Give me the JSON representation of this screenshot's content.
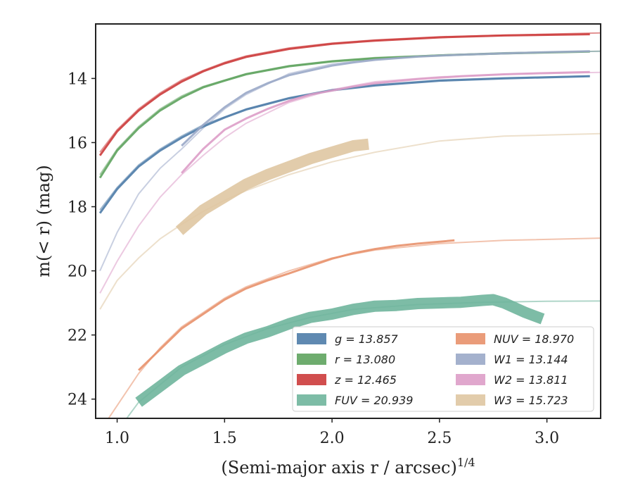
{
  "chart_data": {
    "type": "line",
    "xlabel": "(Semi-major axis r / arcsec)",
    "xlabel_sup": "1/4",
    "ylabel": "m(< r) (mag)",
    "xlim": [
      0.9,
      3.25
    ],
    "ylim": [
      24.6,
      12.3
    ],
    "y_inverted": true,
    "x_ticks": [
      1.0,
      1.5,
      2.0,
      2.5,
      3.0
    ],
    "x_tick_labels": [
      "1.0",
      "1.5",
      "2.0",
      "2.5",
      "3.0"
    ],
    "y_ticks": [
      14,
      16,
      18,
      20,
      22,
      24
    ],
    "y_tick_labels": [
      "14",
      "16",
      "18",
      "20",
      "22",
      "24"
    ],
    "grid": false,
    "legend_position": "lower-right",
    "series": [
      {
        "label": "g = 13.857",
        "color": "#4e7ca8",
        "band": false,
        "model": {
          "x": [
            0.92,
            1.0,
            1.1,
            1.2,
            1.3,
            1.4,
            1.5,
            1.6,
            1.8,
            2.0,
            2.2,
            2.5,
            2.8,
            3.2
          ],
          "y": [
            18.1,
            17.4,
            16.7,
            16.2,
            15.8,
            15.45,
            15.2,
            14.95,
            14.6,
            14.35,
            14.2,
            14.05,
            13.98,
            13.92
          ]
        },
        "data": {
          "x": [
            0.92,
            1.0,
            1.1,
            1.2,
            1.3,
            1.4,
            1.5,
            1.6,
            1.8,
            2.0,
            2.2,
            2.5,
            2.8,
            3.2
          ],
          "y": [
            18.2,
            17.45,
            16.75,
            16.25,
            15.85,
            15.5,
            15.22,
            14.97,
            14.62,
            14.37,
            14.22,
            14.07,
            14.0,
            13.93
          ]
        }
      },
      {
        "label": "r = 13.080",
        "color": "#5ea35e",
        "band": false,
        "model": {
          "x": [
            0.92,
            1.0,
            1.1,
            1.2,
            1.3,
            1.4,
            1.5,
            1.6,
            1.8,
            2.0,
            2.2,
            2.5,
            2.8,
            3.25
          ],
          "y": [
            17.0,
            16.2,
            15.5,
            14.95,
            14.55,
            14.25,
            14.05,
            13.85,
            13.6,
            13.45,
            13.35,
            13.27,
            13.2,
            13.15
          ]
        },
        "data": {
          "x": [
            0.92,
            1.0,
            1.1,
            1.2,
            1.3,
            1.4,
            1.5,
            1.6,
            1.8,
            2.0,
            2.2,
            2.5,
            2.8,
            3.2
          ],
          "y": [
            17.1,
            16.25,
            15.55,
            15.0,
            14.6,
            14.28,
            14.07,
            13.87,
            13.62,
            13.47,
            13.37,
            13.28,
            13.22,
            13.16
          ]
        }
      },
      {
        "label": "z = 12.465",
        "color": "#cc3b3b",
        "band": false,
        "model": {
          "x": [
            0.92,
            1.0,
            1.1,
            1.2,
            1.3,
            1.4,
            1.5,
            1.6,
            1.8,
            2.0,
            2.2,
            2.5,
            2.8,
            3.25
          ],
          "y": [
            16.3,
            15.6,
            14.95,
            14.45,
            14.05,
            13.75,
            13.5,
            13.3,
            13.05,
            12.9,
            12.8,
            12.7,
            12.65,
            12.58
          ]
        },
        "data": {
          "x": [
            0.92,
            1.0,
            1.1,
            1.2,
            1.3,
            1.4,
            1.5,
            1.6,
            1.8,
            2.0,
            2.2,
            2.5,
            2.8,
            3.2
          ],
          "y": [
            16.4,
            15.65,
            15.0,
            14.5,
            14.1,
            13.78,
            13.53,
            13.33,
            13.08,
            12.92,
            12.82,
            12.72,
            12.66,
            12.62
          ]
        }
      },
      {
        "label": "FUV = 20.939",
        "color": "#6fb59c",
        "band": true,
        "model": {
          "x": [
            0.92,
            1.0,
            1.1,
            1.3,
            1.5,
            1.7,
            1.9,
            2.1,
            2.4,
            2.7,
            3.0,
            3.25
          ],
          "y": [
            26.0,
            25.0,
            24.1,
            23.0,
            22.3,
            21.8,
            21.45,
            21.2,
            21.05,
            20.98,
            20.95,
            20.94
          ]
        },
        "data": {
          "x": [
            1.1,
            1.2,
            1.3,
            1.4,
            1.5,
            1.6,
            1.7,
            1.8,
            1.9,
            2.0,
            2.1,
            2.2,
            2.3,
            2.4,
            2.5,
            2.6,
            2.7,
            2.75,
            2.8,
            2.9,
            2.98
          ],
          "y": [
            24.1,
            23.6,
            23.1,
            22.75,
            22.4,
            22.1,
            21.9,
            21.65,
            21.45,
            21.35,
            21.2,
            21.1,
            21.08,
            21.02,
            21.0,
            20.98,
            20.92,
            20.9,
            21.0,
            21.3,
            21.5
          ]
        }
      },
      {
        "label": "NUV = 18.970",
        "color": "#e8916c",
        "band": false,
        "model": {
          "x": [
            0.92,
            1.0,
            1.1,
            1.2,
            1.3,
            1.4,
            1.5,
            1.6,
            1.8,
            2.0,
            2.2,
            2.5,
            2.8,
            3.25
          ],
          "y": [
            25.0,
            24.2,
            23.2,
            22.4,
            21.75,
            21.3,
            20.85,
            20.5,
            20.0,
            19.6,
            19.35,
            19.15,
            19.05,
            18.98
          ]
        },
        "data": {
          "x": [
            1.1,
            1.2,
            1.3,
            1.4,
            1.5,
            1.6,
            1.7,
            1.8,
            1.9,
            2.0,
            2.1,
            2.2,
            2.3,
            2.4,
            2.57
          ],
          "y": [
            23.1,
            22.45,
            21.8,
            21.35,
            20.9,
            20.55,
            20.3,
            20.08,
            19.85,
            19.62,
            19.45,
            19.32,
            19.22,
            19.15,
            19.05
          ]
        }
      },
      {
        "label": "W1 = 13.144",
        "color": "#9aa8c8",
        "band": false,
        "model": {
          "x": [
            0.92,
            1.0,
            1.1,
            1.2,
            1.3,
            1.4,
            1.5,
            1.6,
            1.8,
            2.0,
            2.2,
            2.5,
            2.8,
            3.25
          ],
          "y": [
            20.0,
            18.8,
            17.6,
            16.8,
            16.2,
            15.55,
            14.95,
            14.5,
            13.85,
            13.55,
            13.4,
            13.27,
            13.2,
            13.15
          ]
        },
        "data": {
          "x": [
            1.3,
            1.4,
            1.5,
            1.6,
            1.7,
            1.8,
            1.9,
            2.0,
            2.1,
            2.2,
            2.4,
            2.6,
            2.8,
            3.0,
            3.2
          ],
          "y": [
            16.1,
            15.45,
            14.9,
            14.45,
            14.15,
            13.9,
            13.75,
            13.6,
            13.5,
            13.42,
            13.32,
            13.26,
            13.22,
            13.18,
            13.15
          ]
        }
      },
      {
        "label": "W2 = 13.811",
        "color": "#dd9dc8",
        "band": false,
        "model": {
          "x": [
            0.92,
            1.0,
            1.1,
            1.2,
            1.3,
            1.4,
            1.5,
            1.6,
            1.8,
            2.0,
            2.2,
            2.5,
            2.8,
            3.25
          ],
          "y": [
            20.7,
            19.7,
            18.6,
            17.7,
            17.0,
            16.4,
            15.85,
            15.4,
            14.75,
            14.35,
            14.1,
            13.95,
            13.87,
            13.81
          ]
        },
        "data": {
          "x": [
            1.3,
            1.4,
            1.5,
            1.6,
            1.7,
            1.8,
            1.9,
            2.0,
            2.1,
            2.2,
            2.4,
            2.6,
            2.8,
            3.0,
            3.2
          ],
          "y": [
            16.95,
            16.2,
            15.6,
            15.25,
            14.95,
            14.7,
            14.5,
            14.38,
            14.25,
            14.15,
            14.02,
            13.93,
            13.87,
            13.83,
            13.8
          ]
        }
      },
      {
        "label": "W3 = 15.723",
        "color": "#dfc6a2",
        "band": true,
        "model": {
          "x": [
            0.92,
            1.0,
            1.1,
            1.2,
            1.3,
            1.4,
            1.5,
            1.6,
            1.8,
            2.0,
            2.2,
            2.5,
            2.8,
            3.25
          ],
          "y": [
            21.2,
            20.3,
            19.6,
            19.0,
            18.55,
            18.15,
            17.8,
            17.5,
            17.0,
            16.6,
            16.3,
            15.95,
            15.8,
            15.72
          ]
        },
        "data": {
          "x": [
            1.29,
            1.35,
            1.4,
            1.5,
            1.55,
            1.6,
            1.7,
            1.8,
            1.9,
            2.0,
            2.1,
            2.17
          ],
          "y": [
            18.75,
            18.4,
            18.1,
            17.7,
            17.5,
            17.3,
            17.0,
            16.75,
            16.5,
            16.3,
            16.1,
            16.05
          ]
        }
      }
    ]
  }
}
